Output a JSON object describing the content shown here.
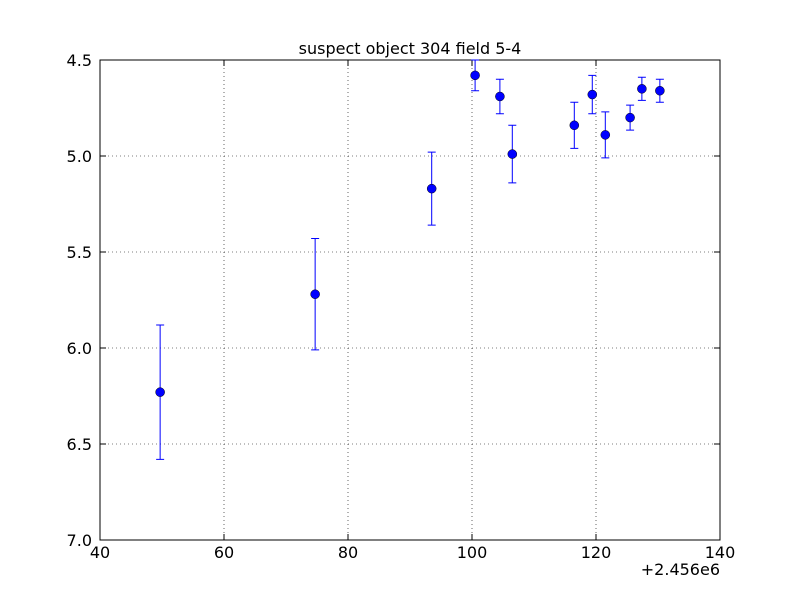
{
  "chart_data": {
    "type": "errorbar",
    "title": "suspect object 304 field 5-4",
    "x_offset_label": "+2.456e6",
    "x": [
      49.7,
      74.7,
      93.5,
      100.5,
      104.5,
      106.5,
      116.5,
      119.4,
      121.5,
      125.5,
      127.4,
      130.3
    ],
    "values": [
      6.23,
      5.72,
      5.17,
      4.58,
      4.69,
      4.99,
      4.84,
      4.68,
      4.89,
      4.8,
      4.65,
      4.66
    ],
    "errors": [
      0.35,
      0.29,
      0.19,
      0.08,
      0.09,
      0.15,
      0.12,
      0.1,
      0.12,
      0.065,
      0.06,
      0.06
    ],
    "color": "#0000ff",
    "xlim": [
      40,
      140
    ],
    "xticks": [
      40,
      60,
      80,
      100,
      120,
      140
    ],
    "ylim": [
      4.5,
      7.0
    ],
    "invert_y": true,
    "yticks": [
      4.5,
      {
        "value": 5,
        "label": "5.0"
      },
      5.5,
      {
        "value": 6,
        "label": "6.0"
      },
      6.5,
      {
        "value": 7,
        "label": "7.0"
      }
    ],
    "grid": true
  }
}
